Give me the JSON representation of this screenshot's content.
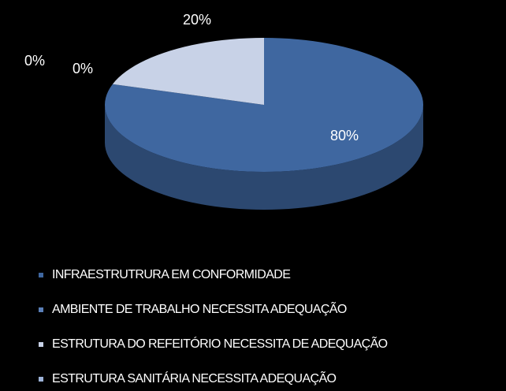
{
  "chart_data": {
    "type": "pie",
    "categories": [
      "INFRAESTRUTRURA EM CONFORMIDADE",
      "AMBIENTE DE TRABALHO NECESSITA ADEQUAÇÃO",
      "ESTRUTURA DO REFEITÓRIO NECESSITA DE ADEQUAÇÃO",
      "ESTRUTURA SANITÁRIA NECESSITA ADEQUAÇÃO"
    ],
    "values": [
      80,
      0,
      20,
      0
    ],
    "value_labels": [
      "80%",
      "0%",
      "20%",
      "0%"
    ],
    "colors": [
      "#3f67a0",
      "#5a7fb8",
      "#c8d2e7",
      "#9db3d8"
    ],
    "legend": "bottom"
  }
}
